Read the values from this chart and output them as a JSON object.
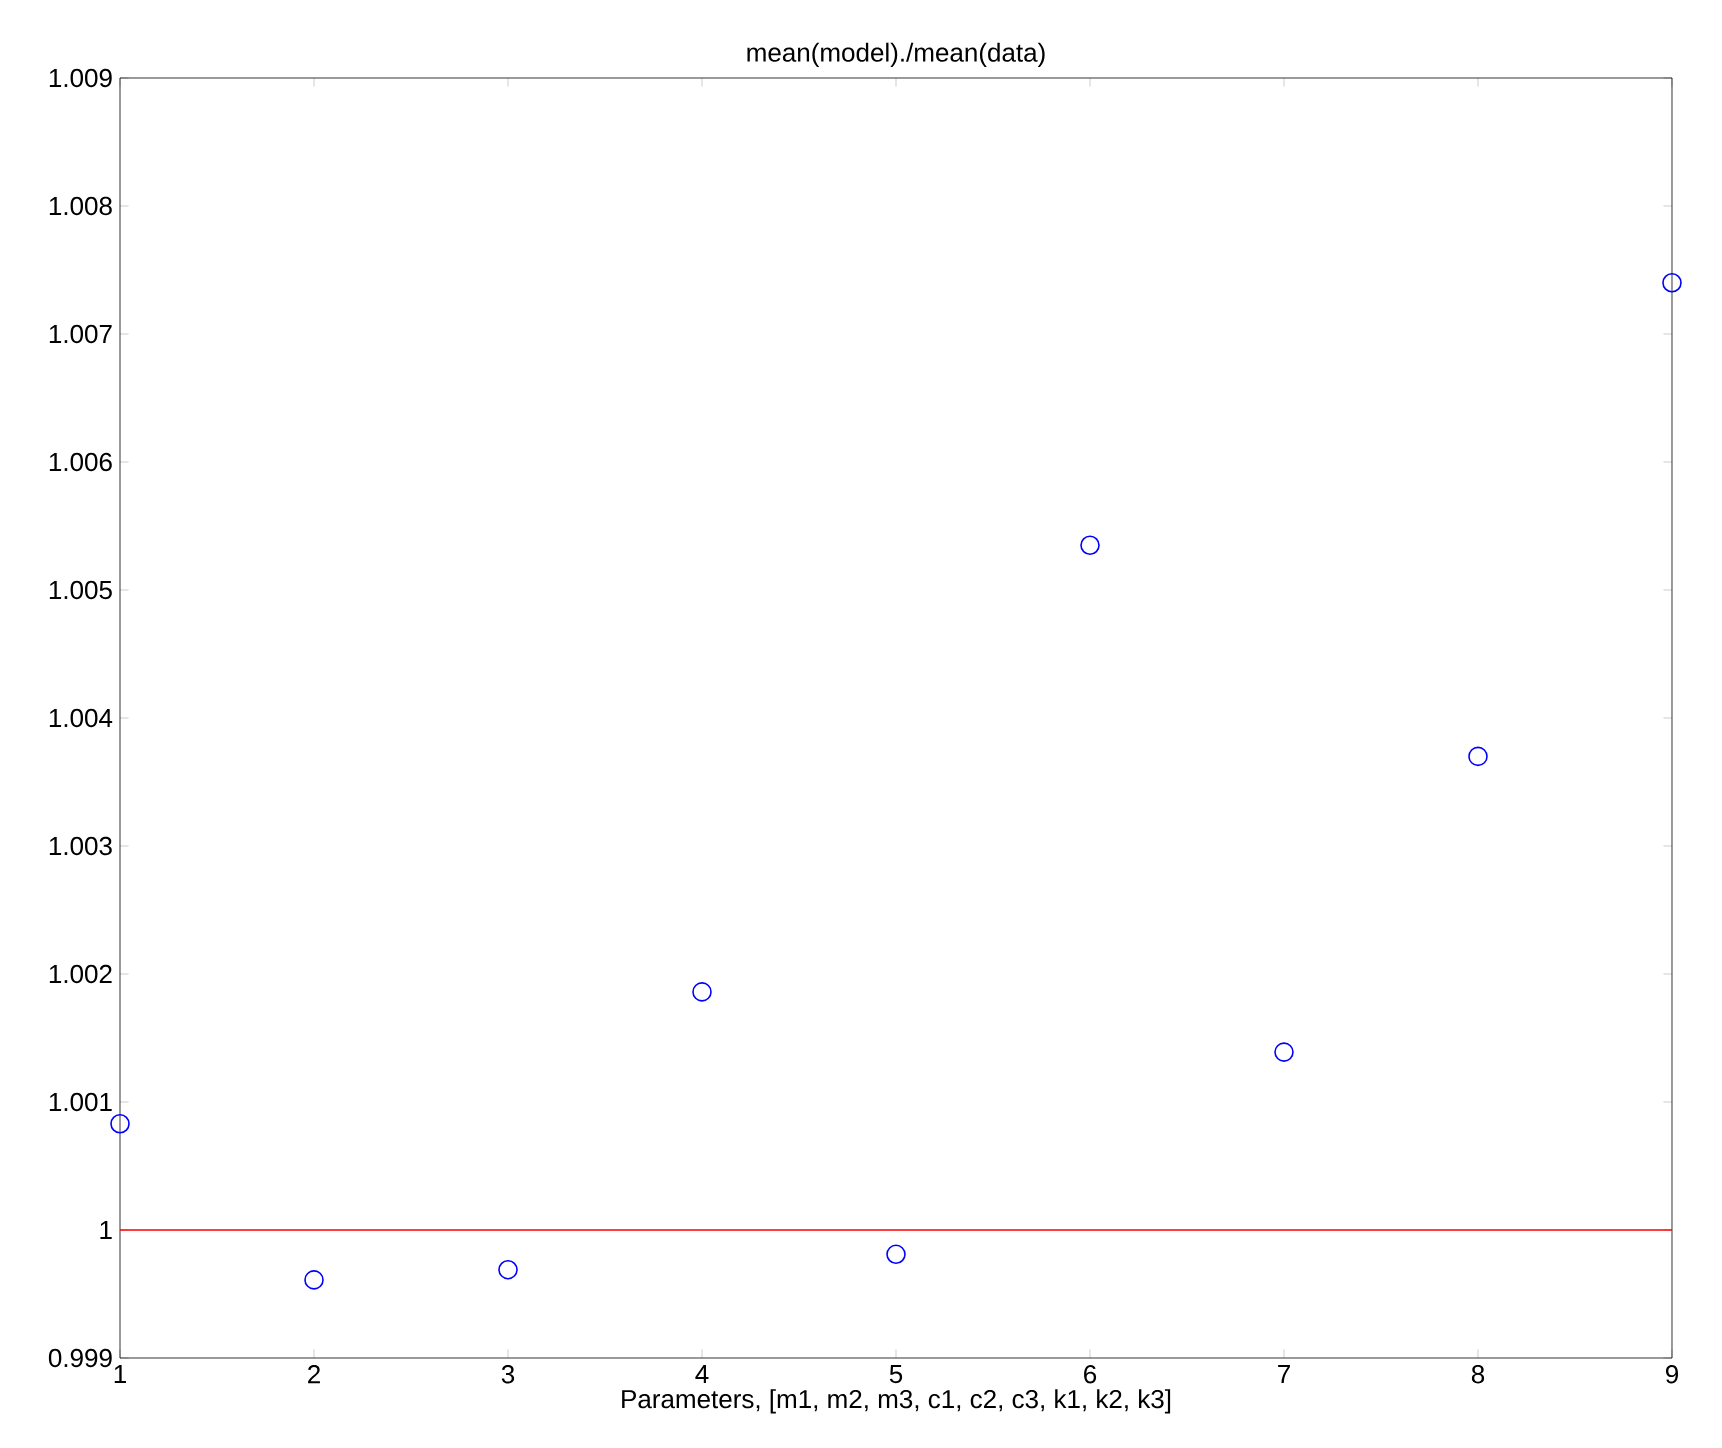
{
  "chart_data": {
    "type": "scatter",
    "title": "mean(model)./mean(data)",
    "xlabel": "Parameters, [m1, m2, m3, c1, c2, c3, k1, k2, k3]",
    "x": [
      1,
      2,
      3,
      4,
      5,
      6,
      7,
      8,
      9
    ],
    "series": [
      {
        "color": "#0000ff",
        "values": [
          1.00083,
          0.99961,
          0.99969,
          1.00186,
          0.99981,
          1.00535,
          1.00139,
          1.0037,
          1.0074
        ]
      }
    ],
    "marker": "circle",
    "xlim": [
      1,
      9
    ],
    "xticks": [
      1,
      2,
      3,
      4,
      5,
      6,
      7,
      8,
      9
    ],
    "ylim": [
      0.999,
      1.009
    ],
    "yticks": [
      0.999,
      1,
      1.001,
      1.002,
      1.003,
      1.004,
      1.005,
      1.006,
      1.007,
      1.008,
      1.009
    ],
    "ref_lines": [
      {
        "axis": "y",
        "value": 1,
        "color": "#ff0000"
      }
    ]
  }
}
